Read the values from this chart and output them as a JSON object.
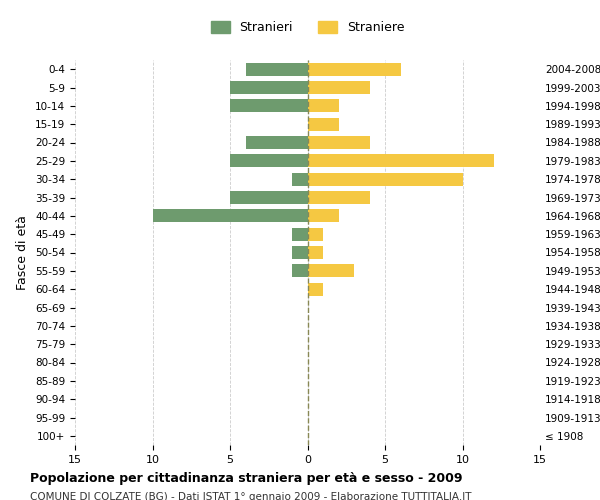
{
  "age_groups": [
    "100+",
    "95-99",
    "90-94",
    "85-89",
    "80-84",
    "75-79",
    "70-74",
    "65-69",
    "60-64",
    "55-59",
    "50-54",
    "45-49",
    "40-44",
    "35-39",
    "30-34",
    "25-29",
    "20-24",
    "15-19",
    "10-14",
    "5-9",
    "0-4"
  ],
  "birth_years": [
    "≤ 1908",
    "1909-1913",
    "1914-1918",
    "1919-1923",
    "1924-1928",
    "1929-1933",
    "1934-1938",
    "1939-1943",
    "1944-1948",
    "1949-1953",
    "1954-1958",
    "1959-1963",
    "1964-1968",
    "1969-1973",
    "1974-1978",
    "1979-1983",
    "1984-1988",
    "1989-1993",
    "1994-1998",
    "1999-2003",
    "2004-2008"
  ],
  "males": [
    0,
    0,
    0,
    0,
    0,
    0,
    0,
    0,
    0,
    1,
    1,
    1,
    10,
    5,
    1,
    5,
    4,
    0,
    5,
    5,
    4
  ],
  "females": [
    0,
    0,
    0,
    0,
    0,
    0,
    0,
    0,
    1,
    3,
    1,
    1,
    2,
    4,
    10,
    12,
    4,
    2,
    2,
    4,
    6
  ],
  "male_color": "#6e9b6e",
  "female_color": "#f5c842",
  "center_line_color": "#888855",
  "grid_color": "#cccccc",
  "bg_color": "#ffffff",
  "title": "Popolazione per cittadinanza straniera per età e sesso - 2009",
  "subtitle": "COMUNE DI COLZATE (BG) - Dati ISTAT 1° gennaio 2009 - Elaborazione TUTTITALIA.IT",
  "ylabel_left": "Fasce di età",
  "legend_male": "Stranieri",
  "legend_female": "Straniere",
  "xlim": 15,
  "figsize": [
    6.0,
    5.0
  ],
  "dpi": 100
}
